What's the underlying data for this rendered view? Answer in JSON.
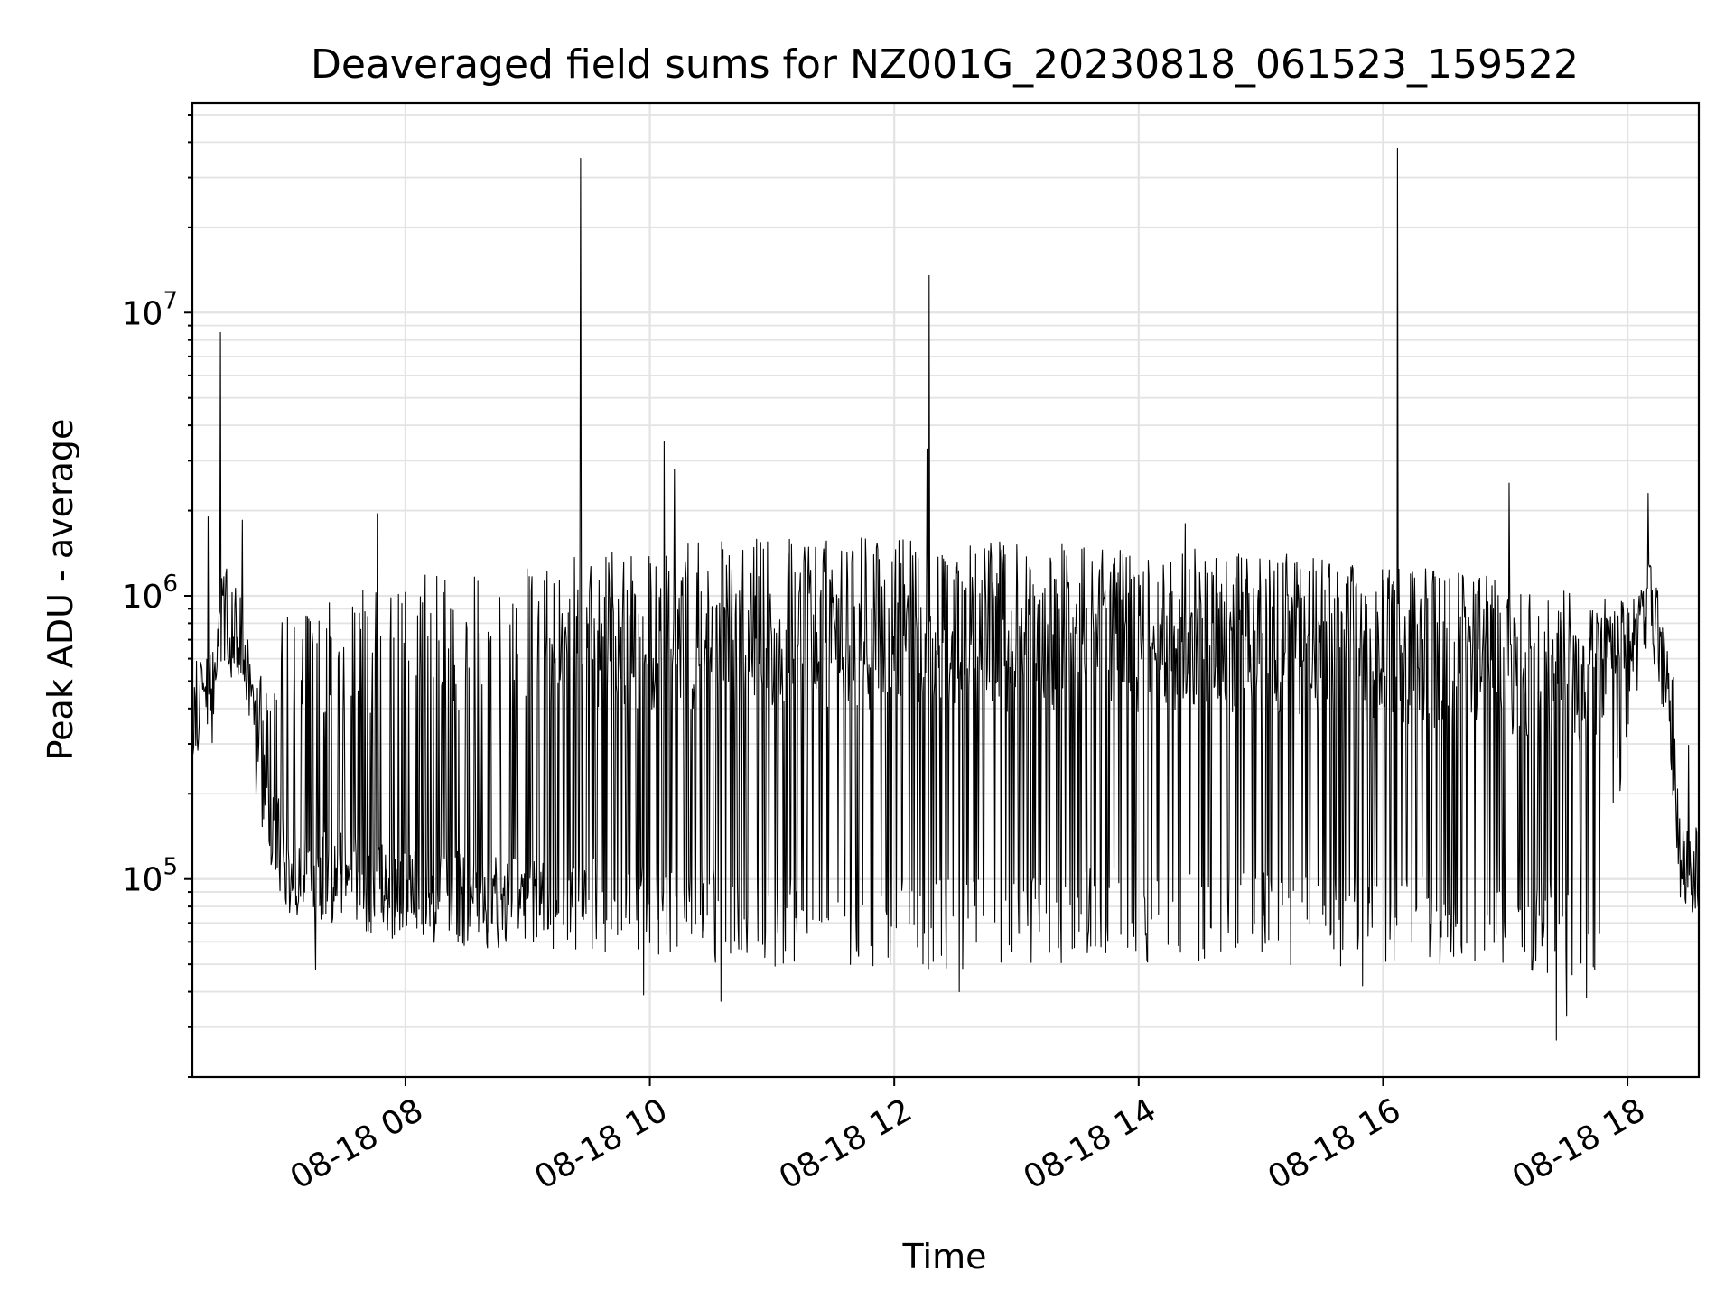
{
  "chart_data": {
    "type": "line",
    "title": "Deaveraged field sums for NZ001G_20230818_061523_159522",
    "xlabel": "Time",
    "ylabel": "Peak ADU - average",
    "xscale": "time",
    "yscale": "log",
    "xlim": [
      "2023-08-18T06:15:23",
      "2023-08-18T18:35:00"
    ],
    "ylim": [
      20000,
      55000000
    ],
    "grid": true,
    "legend": "none",
    "x_ticks": [
      {
        "value": "2023-08-18T08:00:00",
        "label": "08-18 08"
      },
      {
        "value": "2023-08-18T10:00:00",
        "label": "08-18 10"
      },
      {
        "value": "2023-08-18T12:00:00",
        "label": "08-18 12"
      },
      {
        "value": "2023-08-18T14:00:00",
        "label": "08-18 14"
      },
      {
        "value": "2023-08-18T16:00:00",
        "label": "08-18 16"
      },
      {
        "value": "2023-08-18T18:00:00",
        "label": "08-18 18"
      }
    ],
    "y_ticks": [
      {
        "value": 100000,
        "base": "10",
        "exp": "5"
      },
      {
        "value": 1000000,
        "base": "10",
        "exp": "6"
      },
      {
        "value": 10000000,
        "base": "10",
        "exp": "7"
      }
    ],
    "series": [
      {
        "color": "#000000",
        "baseline": [
          [
            "2023-08-18T06:15:23",
            400000
          ],
          [
            "2023-08-18T06:25:00",
            420000
          ],
          [
            "2023-08-18T06:30:00",
            900000
          ],
          [
            "2023-08-18T06:40:00",
            650000
          ],
          [
            "2023-08-18T06:48:00",
            220000
          ],
          [
            "2023-08-18T07:00:00",
            110000
          ],
          [
            "2023-08-18T08:00:00",
            88000
          ],
          [
            "2023-08-18T09:00:00",
            82000
          ],
          [
            "2023-08-18T10:00:00",
            78000
          ],
          [
            "2023-08-18T11:00:00",
            72000
          ],
          [
            "2023-08-18T12:00:00",
            70000
          ],
          [
            "2023-08-18T13:00:00",
            72000
          ],
          [
            "2023-08-18T14:00:00",
            75000
          ],
          [
            "2023-08-18T15:00:00",
            74000
          ],
          [
            "2023-08-18T16:00:00",
            72000
          ],
          [
            "2023-08-18T17:00:00",
            70000
          ],
          [
            "2023-08-18T17:45:00",
            65000
          ],
          [
            "2023-08-18T18:00:00",
            300000
          ],
          [
            "2023-08-18T18:10:00",
            1000000
          ],
          [
            "2023-08-18T18:25:00",
            120000
          ],
          [
            "2023-08-18T18:35:00",
            110000
          ]
        ],
        "envelope": [
          [
            "2023-08-18T06:15:23",
            500000
          ],
          [
            "2023-08-18T06:48:00",
            500000
          ],
          [
            "2023-08-18T07:00:00",
            900000
          ],
          [
            "2023-08-18T08:00:00",
            1200000
          ],
          [
            "2023-08-18T09:00:00",
            1400000
          ],
          [
            "2023-08-18T10:00:00",
            1500000
          ],
          [
            "2023-08-18T11:00:00",
            1600000
          ],
          [
            "2023-08-18T12:00:00",
            1600000
          ],
          [
            "2023-08-18T13:00:00",
            1550000
          ],
          [
            "2023-08-18T14:00:00",
            1500000
          ],
          [
            "2023-08-18T15:00:00",
            1450000
          ],
          [
            "2023-08-18T16:00:00",
            1300000
          ],
          [
            "2023-08-18T17:00:00",
            1150000
          ],
          [
            "2023-08-18T18:00:00",
            950000
          ],
          [
            "2023-08-18T18:10:00",
            1100000
          ],
          [
            "2023-08-18T18:35:00",
            130000
          ]
        ],
        "spike_density": [
          [
            "2023-08-18T06:15:23",
            0.15
          ],
          [
            "2023-08-18T06:48:00",
            0.3
          ],
          [
            "2023-08-18T08:00:00",
            0.3
          ],
          [
            "2023-08-18T09:00:00",
            0.4
          ],
          [
            "2023-08-18T09:15:00",
            0.55
          ],
          [
            "2023-08-18T10:45:00",
            0.75
          ],
          [
            "2023-08-18T16:00:00",
            0.75
          ],
          [
            "2023-08-18T18:00:00",
            0.7
          ],
          [
            "2023-08-18T18:15:00",
            0.05
          ],
          [
            "2023-08-18T18:35:00",
            0.05
          ]
        ],
        "spikes": [
          [
            "2023-08-18T06:29:00",
            8500000
          ],
          [
            "2023-08-18T06:23:00",
            1900000
          ],
          [
            "2023-08-18T06:40:00",
            1850000
          ],
          [
            "2023-08-18T07:46:00",
            1950000
          ],
          [
            "2023-08-18T09:26:00",
            35000000
          ],
          [
            "2023-08-18T10:07:00",
            3500000
          ],
          [
            "2023-08-18T10:12:00",
            2800000
          ],
          [
            "2023-08-18T12:16:00",
            3300000
          ],
          [
            "2023-08-18T12:17:00",
            13500000
          ],
          [
            "2023-08-18T14:23:00",
            1800000
          ],
          [
            "2023-08-18T16:07:00",
            38000000
          ],
          [
            "2023-08-18T17:02:00",
            2500000
          ],
          [
            "2023-08-18T18:10:00",
            2300000
          ]
        ],
        "dips": [
          [
            "2023-08-18T07:16:00",
            48000
          ],
          [
            "2023-08-18T09:57:00",
            39000
          ],
          [
            "2023-08-18T10:35:00",
            37000
          ],
          [
            "2023-08-18T12:32:00",
            40000
          ],
          [
            "2023-08-18T15:50:00",
            42000
          ],
          [
            "2023-08-18T17:25:00",
            27000
          ],
          [
            "2023-08-18T17:30:00",
            33000
          ],
          [
            "2023-08-18T17:40:00",
            38000
          ]
        ]
      }
    ]
  }
}
